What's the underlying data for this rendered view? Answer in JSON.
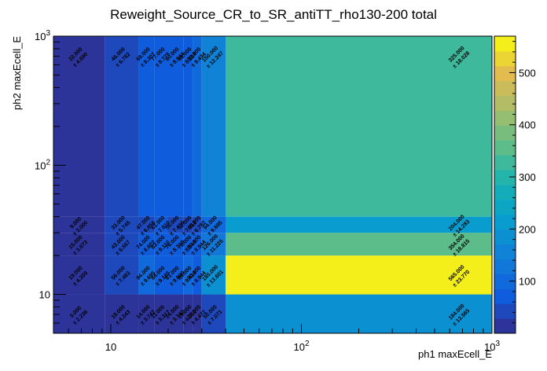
{
  "chart_data": {
    "type": "heatmap",
    "title": "Reweight_Source_CR_to_SR_antiTT_rho130-200 total",
    "xlabel": "ph1 maxEcell_E",
    "ylabel": "ph2 maxEcell_E",
    "xscale": "log",
    "yscale": "log",
    "xlim": [
      5,
      1000
    ],
    "ylim": [
      5,
      1000
    ],
    "x_ticks": [
      {
        "value": 10,
        "label": "10"
      },
      {
        "value": 100,
        "label": "10^2"
      },
      {
        "value": 1000,
        "label": "10^3"
      }
    ],
    "y_ticks": [
      {
        "value": 10,
        "label": "10"
      },
      {
        "value": 100,
        "label": "10^2"
      },
      {
        "value": 1000,
        "label": "10^3"
      }
    ],
    "z_range": [
      0,
      570
    ],
    "z_ticks": [
      100,
      200,
      300,
      400,
      500
    ],
    "x_edges": [
      5,
      9.3,
      14,
      17,
      20,
      24,
      27,
      30,
      40,
      1000
    ],
    "y_edges": [
      5,
      10,
      20,
      30,
      40,
      1000
    ],
    "cells": [
      {
        "xi": 0,
        "yi": 0,
        "value": 5,
        "label": "5.000",
        "error": "± 2.236"
      },
      {
        "xi": 1,
        "yi": 0,
        "value": 18,
        "label": "18.000",
        "error": "± 4.243"
      },
      {
        "xi": 2,
        "yi": 0,
        "value": 14,
        "label": "14.000",
        "error": "± 3.742"
      },
      {
        "xi": 3,
        "yi": 0,
        "value": 11,
        "label": "11.000",
        "error": "± 3.317"
      },
      {
        "xi": 4,
        "yi": 0,
        "value": 14,
        "label": "14.000",
        "error": "± 3.742"
      },
      {
        "xi": 5,
        "yi": 0,
        "value": 19,
        "label": "19.000",
        "error": "± 4.359"
      },
      {
        "xi": 6,
        "yi": 0,
        "value": 20,
        "label": "20.000",
        "error": "± 4.472"
      },
      {
        "xi": 7,
        "yi": 0,
        "value": 50,
        "label": "50.000",
        "error": "± 7.071"
      },
      {
        "xi": 8,
        "yi": 0,
        "value": 184,
        "label": "184.000",
        "error": "± 13.565"
      },
      {
        "xi": 0,
        "yi": 1,
        "value": 19,
        "label": "19.000",
        "error": "± 4.359"
      },
      {
        "xi": 1,
        "yi": 1,
        "value": 56,
        "label": "56.000",
        "error": "± 7.483"
      },
      {
        "xi": 2,
        "yi": 1,
        "value": 94,
        "label": "94.000",
        "error": "± 9.695"
      },
      {
        "xi": 3,
        "yi": 1,
        "value": 84,
        "label": "84.000",
        "error": "± 9.165"
      },
      {
        "xi": 4,
        "yi": 1,
        "value": 81,
        "label": "81.000",
        "error": "± 9.000"
      },
      {
        "xi": 5,
        "yi": 1,
        "value": 89,
        "label": "89.000",
        "error": "± 9.434"
      },
      {
        "xi": 6,
        "yi": 1,
        "value": 80,
        "label": "80.000",
        "error": "± 8.944"
      },
      {
        "xi": 7,
        "yi": 1,
        "value": 185,
        "label": "185.000",
        "error": "± 13.601"
      },
      {
        "xi": 8,
        "yi": 1,
        "value": 565,
        "label": "565.000",
        "error": "± 23.770"
      },
      {
        "xi": 0,
        "yi": 2,
        "value": 15,
        "label": "15.000",
        "error": "± 3.873"
      },
      {
        "xi": 1,
        "yi": 2,
        "value": 43,
        "label": "43.000",
        "error": "± 6.557"
      },
      {
        "xi": 2,
        "yi": 2,
        "value": 74,
        "label": "74.000",
        "error": "± 8.602"
      },
      {
        "xi": 3,
        "yi": 2,
        "value": 83,
        "label": "83.000",
        "error": "± 9.110"
      },
      {
        "xi": 4,
        "yi": 2,
        "value": 76,
        "label": "76.000",
        "error": "± 8.718"
      },
      {
        "xi": 5,
        "yi": 2,
        "value": 73,
        "label": "73.000",
        "error": "± 8.544"
      },
      {
        "xi": 6,
        "yi": 2,
        "value": 80,
        "label": "80.000",
        "error": "± 8.944"
      },
      {
        "xi": 7,
        "yi": 2,
        "value": 126,
        "label": "126.000",
        "error": "± 11.225"
      },
      {
        "xi": 8,
        "yi": 2,
        "value": 354,
        "label": "354.000",
        "error": "± 18.815"
      },
      {
        "xi": 0,
        "yi": 3,
        "value": 9,
        "label": "9.000",
        "error": "± 3.000"
      },
      {
        "xi": 1,
        "yi": 3,
        "value": 33,
        "label": "33.000",
        "error": "± 5.745"
      },
      {
        "xi": 2,
        "yi": 3,
        "value": 47,
        "label": "47.000",
        "error": "± 6.856"
      },
      {
        "xi": 3,
        "yi": 3,
        "value": 61,
        "label": "61.000",
        "error": "± 7.810"
      },
      {
        "xi": 4,
        "yi": 3,
        "value": 55,
        "label": "55.000",
        "error": "± 7.416"
      },
      {
        "xi": 5,
        "yi": 3,
        "value": 52,
        "label": "52.000",
        "error": "± 7.211"
      },
      {
        "xi": 6,
        "yi": 3,
        "value": 46,
        "label": "46.000",
        "error": "± 6.782"
      },
      {
        "xi": 7,
        "yi": 3,
        "value": 94,
        "label": "94.000",
        "error": "± 9.695"
      },
      {
        "xi": 8,
        "yi": 3,
        "value": 204,
        "label": "204.000",
        "error": "± 14.283"
      },
      {
        "xi": 0,
        "yi": 4,
        "value": 22,
        "label": "22.000",
        "error": "± 4.690"
      },
      {
        "xi": 1,
        "yi": 4,
        "value": 46,
        "label": "46.000",
        "error": "± 6.782"
      },
      {
        "xi": 2,
        "yi": 4,
        "value": 69,
        "label": "69.000",
        "error": "± 8.307"
      },
      {
        "xi": 3,
        "yi": 4,
        "value": 77,
        "label": "77.000",
        "error": "± 8.775"
      },
      {
        "xi": 4,
        "yi": 4,
        "value": 80,
        "label": "80.000",
        "error": "± 8.944"
      },
      {
        "xi": 5,
        "yi": 4,
        "value": 66,
        "label": "66.000",
        "error": "± 8.124"
      },
      {
        "xi": 6,
        "yi": 4,
        "value": 89,
        "label": "89.000",
        "error": "± 9.434"
      },
      {
        "xi": 7,
        "yi": 4,
        "value": 150,
        "label": "150.000",
        "error": "± 12.247"
      },
      {
        "xi": 8,
        "yi": 4,
        "value": 325,
        "label": "325.000",
        "error": "± 18.028"
      }
    ]
  }
}
